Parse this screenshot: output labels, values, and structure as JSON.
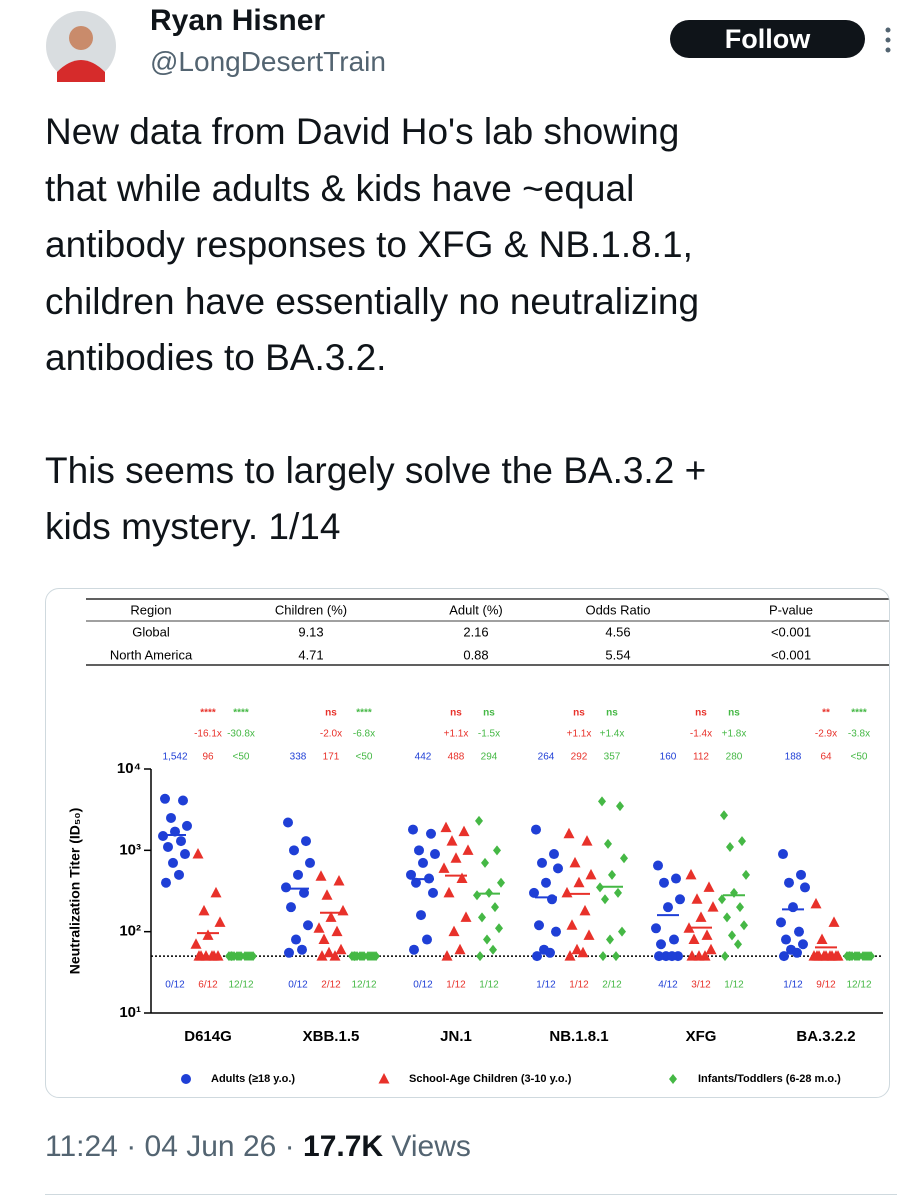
{
  "tweet": {
    "author": "Ryan Hisner",
    "handle": "@LongDesertTrain",
    "follow": "Follow",
    "paragraphs": [
      [
        "New data from David Ho's lab showing",
        "that while adults & kids have ~equal",
        "antibody responses to XFG & NB.1.8.1,",
        "children have essentially no neutralizing",
        "antibodies to BA.3.2."
      ],
      [
        "This seems to largely solve the BA.3.2 +",
        "kids mystery. 1/14"
      ]
    ],
    "time": "11:24",
    "separator": "·",
    "date": "04 Jun 26",
    "views_count": "17.7K",
    "views_label": "Views"
  },
  "table": {
    "header": [
      "Region",
      "Children (%)",
      "Adult (%)",
      "Odds Ratio",
      "P-value"
    ],
    "rows": [
      [
        "Global",
        "9.13",
        "2.16",
        "4.56",
        "<0.001"
      ],
      [
        "North America",
        "4.71",
        "0.88",
        "5.54",
        "<0.001"
      ]
    ]
  },
  "chart_data": {
    "type": "scatter",
    "ylabel": "Neutralization Titer (ID₅₀)",
    "log_y": true,
    "ylim": [
      10,
      10000
    ],
    "yticks": [
      {
        "value": 10,
        "label": "10¹"
      },
      {
        "value": 100,
        "label": "10²"
      },
      {
        "value": 1000,
        "label": "10³"
      },
      {
        "value": 10000,
        "label": "10⁴"
      }
    ],
    "lod": 50,
    "categories": [
      "D614G",
      "XBB.1.5",
      "JN.1",
      "NB.1.8.1",
      "XFG",
      "BA.3.2.2"
    ],
    "series": [
      {
        "name": "Adults (≥18 y.o.)",
        "color": "#1f3fd6",
        "marker": "circle",
        "gmt": [
          1542,
          338,
          442,
          264,
          160,
          188
        ],
        "gmt_labels": [
          "1,542",
          "338",
          "442",
          "264",
          "160",
          "188"
        ],
        "below_lod": [
          "0/12",
          "0/12",
          "0/12",
          "1/12",
          "4/12",
          "1/12"
        ],
        "points": [
          [
            4300,
            4100,
            2500,
            2000,
            1700,
            1500,
            1300,
            1100,
            900,
            700,
            500,
            400
          ],
          [
            2200,
            1300,
            1000,
            700,
            500,
            350,
            300,
            200,
            120,
            80,
            60,
            55
          ],
          [
            1800,
            1600,
            1000,
            900,
            700,
            500,
            450,
            400,
            300,
            160,
            80,
            60
          ],
          [
            1800,
            900,
            700,
            600,
            400,
            300,
            250,
            120,
            100,
            60,
            55,
            50
          ],
          [
            650,
            450,
            400,
            250,
            200,
            110,
            80,
            70,
            50,
            50,
            50,
            50
          ],
          [
            900,
            500,
            400,
            350,
            200,
            130,
            100,
            80,
            70,
            60,
            55,
            50
          ]
        ]
      },
      {
        "name": "School-Age Children (3-10 y.o.)",
        "color": "#e8312a",
        "marker": "triangle",
        "gmt": [
          96,
          171,
          488,
          292,
          112,
          64
        ],
        "gmt_labels": [
          "96",
          "171",
          "488",
          "292",
          "112",
          "64"
        ],
        "fold": [
          "-16.1x",
          "-2.0x",
          "+1.1x",
          "+1.1x",
          "-1.4x",
          "-2.9x"
        ],
        "significance": [
          "****",
          "ns",
          "ns",
          "ns",
          "ns",
          "**"
        ],
        "below_lod": [
          "6/12",
          "2/12",
          "1/12",
          "1/12",
          "3/12",
          "9/12"
        ],
        "points": [
          [
            900,
            300,
            180,
            130,
            90,
            70,
            50,
            50,
            50,
            50,
            50,
            50
          ],
          [
            480,
            420,
            280,
            180,
            150,
            110,
            100,
            80,
            60,
            55,
            50,
            50
          ],
          [
            1900,
            1700,
            1300,
            1000,
            800,
            600,
            450,
            300,
            150,
            100,
            60,
            50
          ],
          [
            1600,
            1300,
            700,
            500,
            400,
            300,
            180,
            120,
            90,
            60,
            55,
            50
          ],
          [
            500,
            350,
            250,
            200,
            150,
            110,
            90,
            80,
            60,
            50,
            50,
            50
          ],
          [
            220,
            130,
            80,
            50,
            50,
            50,
            50,
            50,
            50,
            50,
            50,
            50
          ]
        ]
      },
      {
        "name": "Infants/Toddlers (6-28 m.o.)",
        "color": "#45b845",
        "marker": "diamond",
        "gmt": [
          50,
          50,
          294,
          357,
          280,
          50
        ],
        "gmt_labels": [
          "<50",
          "<50",
          "294",
          "357",
          "280",
          "<50"
        ],
        "fold": [
          "-30.8x",
          "-6.8x",
          "-1.5x",
          "+1.4x",
          "+1.8x",
          "-3.8x"
        ],
        "significance": [
          "****",
          "****",
          "ns",
          "ns",
          "ns",
          "****"
        ],
        "below_lod": [
          "12/12",
          "12/12",
          "1/12",
          "2/12",
          "1/12",
          "12/12"
        ],
        "points": [
          [
            50,
            50,
            50,
            50,
            50,
            50,
            50,
            50,
            50,
            50,
            50,
            50
          ],
          [
            50,
            50,
            50,
            50,
            50,
            50,
            50,
            50,
            50,
            50,
            50,
            50
          ],
          [
            2300,
            1000,
            700,
            400,
            300,
            280,
            200,
            150,
            110,
            80,
            60,
            50
          ],
          [
            4000,
            3500,
            1200,
            800,
            500,
            350,
            300,
            250,
            100,
            80,
            50,
            50
          ],
          [
            2700,
            1300,
            1100,
            500,
            300,
            250,
            200,
            150,
            120,
            90,
            70,
            50
          ],
          [
            50,
            50,
            50,
            50,
            50,
            50,
            50,
            50,
            50,
            50,
            50,
            50
          ]
        ]
      }
    ]
  }
}
